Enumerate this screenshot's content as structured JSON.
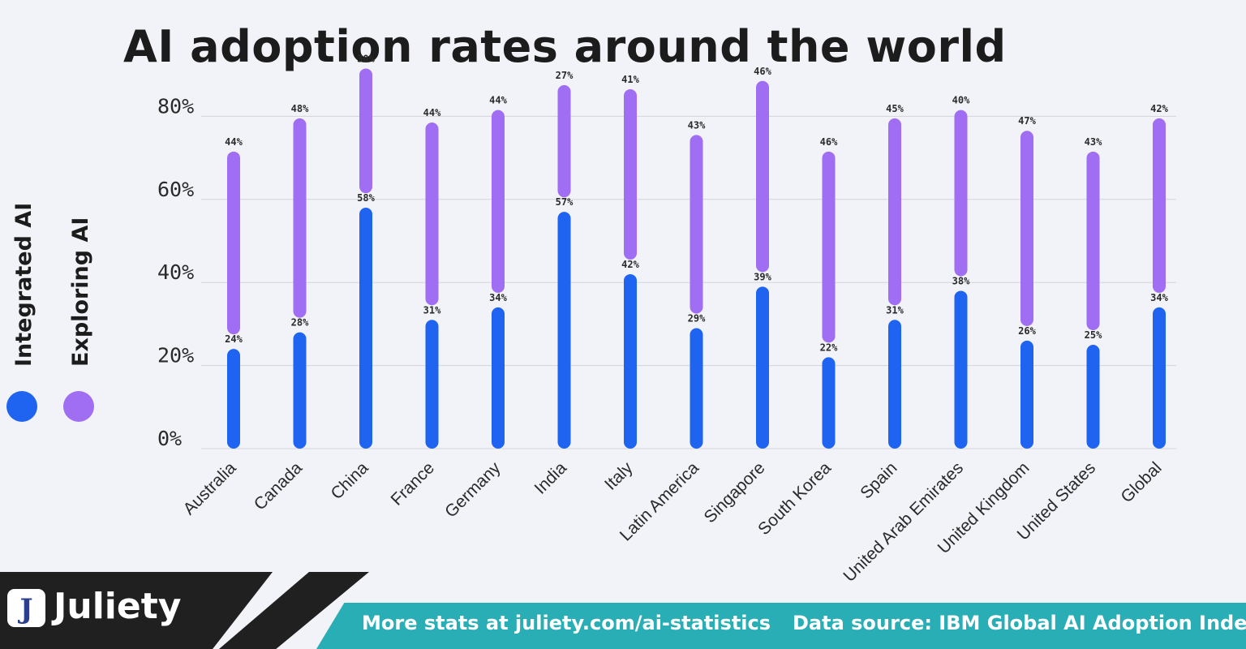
{
  "title": "AI adoption rates around the world",
  "legend": {
    "integrated": "Integrated AI",
    "exploring": "Exploring AI"
  },
  "colors": {
    "integrated": "#1f64f0",
    "exploring": "#a06ef2",
    "footer_teal": "#2aaeb6",
    "footer_dark": "#202020"
  },
  "chart_data": {
    "type": "bar",
    "title": "AI adoption rates around the world",
    "categories": [
      "Australia",
      "Canada",
      "China",
      "France",
      "Germany",
      "India",
      "Italy",
      "Latin America",
      "Singapore",
      "South Korea",
      "Spain",
      "United Arab Emirates",
      "United Kingdom",
      "United States",
      "Global"
    ],
    "series": [
      {
        "name": "Integrated AI",
        "values": [
          24,
          28,
          58,
          31,
          34,
          57,
          42,
          29,
          39,
          22,
          31,
          38,
          26,
          25,
          34
        ]
      },
      {
        "name": "Exploring AI",
        "values": [
          44,
          48,
          30,
          44,
          44,
          27,
          41,
          43,
          46,
          46,
          45,
          40,
          47,
          43,
          42
        ]
      }
    ],
    "yticks": [
      "0%",
      "20%",
      "40%",
      "60%",
      "80%"
    ],
    "ylim": [
      0,
      80
    ],
    "legend_position": "left"
  },
  "footer": {
    "brand": "Juliety",
    "logo_letter": "J",
    "more_stats": "More stats at juliety.com/ai-statistics",
    "data_source": "Data source:  IBM Global AI Adoption Index"
  }
}
